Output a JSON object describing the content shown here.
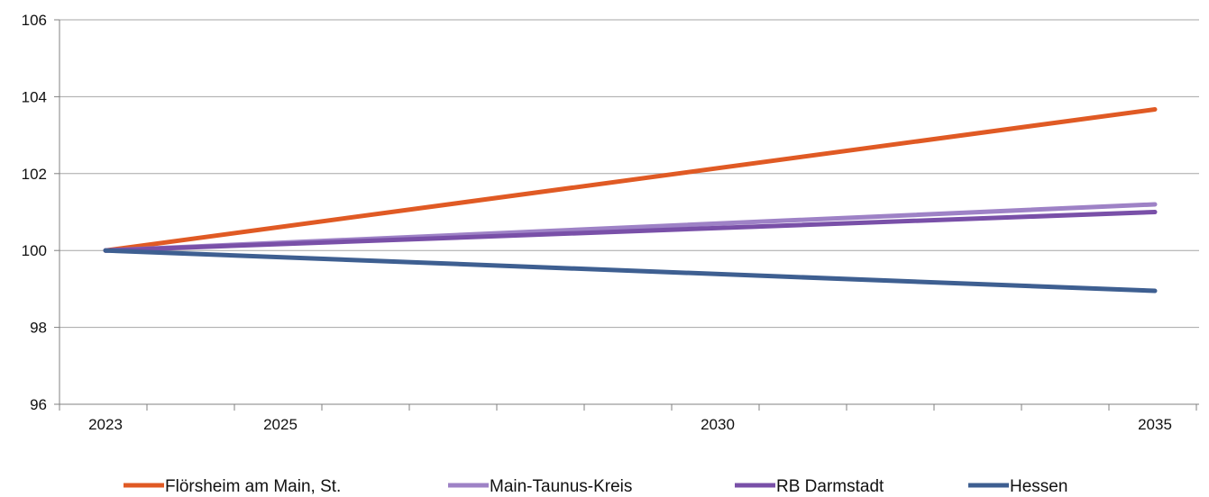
{
  "chart_data": {
    "type": "line",
    "title": "",
    "xlabel": "",
    "ylabel": "",
    "x": [
      2023,
      2035
    ],
    "xticks": [
      2023,
      2025,
      2030,
      2035
    ],
    "xlim": [
      2023,
      2035
    ],
    "ylim": [
      96,
      106
    ],
    "yticks": [
      96,
      98,
      100,
      102,
      104,
      106
    ],
    "grid": "horizontal",
    "legend_position": "bottom",
    "series": [
      {
        "name": "Flörsheim am Main, St.",
        "color": "#E05A24",
        "values": [
          100,
          103.67
        ]
      },
      {
        "name": "Main-Taunus-Kreis",
        "color": "#9E82C6",
        "values": [
          100,
          101.2
        ]
      },
      {
        "name": "RB Darmstadt",
        "color": "#7950A8",
        "values": [
          100,
          101.0
        ]
      },
      {
        "name": "Hessen",
        "color": "#3E5F91",
        "values": [
          100,
          98.95
        ]
      }
    ]
  }
}
